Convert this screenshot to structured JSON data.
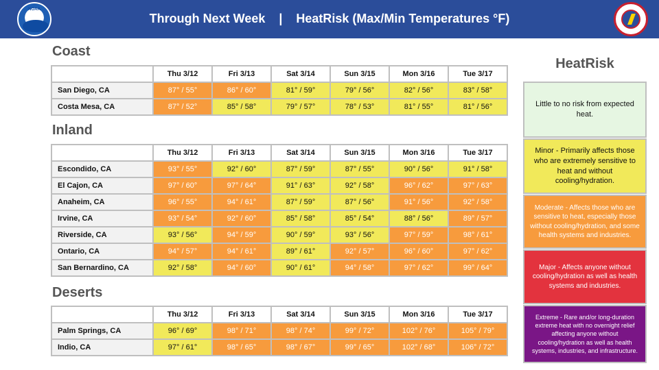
{
  "header": {
    "title": "Through Next Week    |    HeatRisk (Max/Min Temperatures °F)",
    "left_logo": "noaa-logo",
    "right_logo": "nws-logo",
    "background": "#2b4d9a"
  },
  "colors": {
    "minor": "#f1e95a",
    "moderate": "#f79b3d",
    "major": "#e3333e",
    "extreme": "#7a1686",
    "little": "#e6f6e2"
  },
  "days": [
    "Thu 3/12",
    "Fri 3/13",
    "Sat 3/14",
    "Sun 3/15",
    "Mon 3/16",
    "Tue 3/17"
  ],
  "sections": [
    {
      "title": "Coast",
      "rows": [
        {
          "location": "San Diego, CA",
          "values": [
            "87° / 55°",
            "86° / 60°",
            "81° / 59°",
            "79° / 56°",
            "82° / 56°",
            "83° / 58°"
          ],
          "levels": [
            2,
            2,
            1,
            1,
            1,
            1
          ]
        },
        {
          "location": "Costa Mesa, CA",
          "values": [
            "87° / 52°",
            "85° / 58°",
            "79° / 57°",
            "78° / 53°",
            "81° / 55°",
            "81° / 56°"
          ],
          "levels": [
            2,
            1,
            1,
            1,
            1,
            1
          ]
        }
      ]
    },
    {
      "title": "Inland",
      "rows": [
        {
          "location": "Escondido, CA",
          "values": [
            "93° / 55°",
            "92° / 60°",
            "87° / 59°",
            "87° / 55°",
            "90° / 56°",
            "91° / 58°"
          ],
          "levels": [
            2,
            1,
            1,
            1,
            1,
            1
          ]
        },
        {
          "location": "El Cajon, CA",
          "values": [
            "97° / 60°",
            "97° / 64°",
            "91° / 63°",
            "92° / 58°",
            "96° / 62°",
            "97° / 63°"
          ],
          "levels": [
            2,
            2,
            1,
            1,
            2,
            2
          ]
        },
        {
          "location": "Anaheim, CA",
          "values": [
            "96° / 55°",
            "94° / 61°",
            "87° / 59°",
            "87° / 56°",
            "91° / 56°",
            "92° / 58°"
          ],
          "levels": [
            2,
            2,
            1,
            1,
            2,
            2
          ]
        },
        {
          "location": "Irvine, CA",
          "values": [
            "93° / 54°",
            "92° / 60°",
            "85° / 58°",
            "85° / 54°",
            "88° / 56°",
            "89° / 57°"
          ],
          "levels": [
            2,
            2,
            1,
            1,
            1,
            2
          ]
        },
        {
          "location": "Riverside, CA",
          "values": [
            "93° / 56°",
            "94° / 59°",
            "90° / 59°",
            "93° / 56°",
            "97° / 59°",
            "98° / 61°"
          ],
          "levels": [
            1,
            2,
            1,
            1,
            2,
            2
          ]
        },
        {
          "location": "Ontario, CA",
          "values": [
            "94° / 57°",
            "94° / 61°",
            "89° / 61°",
            "92° / 57°",
            "96° / 60°",
            "97° / 62°"
          ],
          "levels": [
            2,
            2,
            1,
            2,
            2,
            2
          ]
        },
        {
          "location": "San Bernardino, CA",
          "values": [
            "92° / 58°",
            "94° / 60°",
            "90° / 61°",
            "94° / 58°",
            "97° / 62°",
            "99° / 64°"
          ],
          "levels": [
            1,
            2,
            1,
            2,
            2,
            2
          ]
        }
      ]
    },
    {
      "title": "Deserts",
      "rows": [
        {
          "location": "Palm Springs, CA",
          "values": [
            "96° / 69°",
            "98° / 71°",
            "98° / 74°",
            "99° / 72°",
            "102° / 76°",
            "105° / 79°"
          ],
          "levels": [
            1,
            2,
            2,
            2,
            2,
            2
          ]
        },
        {
          "location": "Indio, CA",
          "values": [
            "97° / 61°",
            "98° / 65°",
            "98° / 67°",
            "99° / 65°",
            "102° / 68°",
            "106° / 72°"
          ],
          "levels": [
            1,
            2,
            2,
            2,
            2,
            2
          ]
        }
      ]
    }
  ],
  "legend": {
    "title": "HeatRisk",
    "items": [
      {
        "text": "Little to no risk from expected heat."
      },
      {
        "text": "Minor - Primarily affects those who are extremely sensitive to heat and without cooling/hydration."
      },
      {
        "text": "Moderate - Affects those who are sensitive to heat, especially those without cooling/hydration, and some health systems and industries."
      },
      {
        "text": "Major - Affects anyone without cooling/hydration as well as health systems and industries."
      },
      {
        "text": "Extreme - Rare and/or long-duration extreme heat with no overnight relief affecting anyone without cooling/hydration as well as health systems, industries, and infrastructure."
      }
    ]
  }
}
